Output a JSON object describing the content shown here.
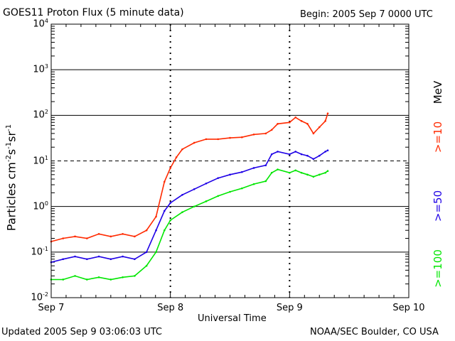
{
  "header": {
    "title": "GOES11 Proton Flux (5 minute data)",
    "begin": "Begin: 2005 Sep 7 0000 UTC"
  },
  "footer": {
    "updated": "Updated 2005 Sep  9 03:06:03 UTC",
    "credit": "NOAA/SEC Boulder, CO USA"
  },
  "colors": {
    "ge10": "#ff2a00",
    "ge50": "#1e00e6",
    "ge100": "#00e600"
  },
  "chart_data": {
    "type": "line",
    "title": "GOES11 Proton Flux (5 minute data)",
    "xlabel": "Universal Time",
    "ylabel": "Particles cm-2s-1sr-1",
    "yscale": "log",
    "ylim": [
      0.01,
      10000
    ],
    "xlim_days": [
      0,
      3
    ],
    "xtick_labels": [
      "Sep 7",
      "Sep 8",
      "Sep 9",
      "Sep 10"
    ],
    "ytick_labels": [
      {
        "base": "10",
        "exp": "-2"
      },
      {
        "base": "10",
        "exp": "-1"
      },
      {
        "base": "10",
        "exp": "0"
      },
      {
        "base": "10",
        "exp": "1"
      },
      {
        "base": "10",
        "exp": "2"
      },
      {
        "base": "10",
        "exp": "3"
      },
      {
        "base": "10",
        "exp": "4"
      }
    ],
    "ylabel_parts": {
      "main": "Particles cm",
      "e1": "-2",
      "s": "s",
      "e2": "-1",
      "sr": "sr",
      "e3": "-1"
    },
    "unit_label": "MeV",
    "reference_line": {
      "value": 10,
      "style": "dashed"
    },
    "series": [
      {
        "name": ">=10",
        "color": "#ff2a00",
        "points": [
          [
            0.0,
            0.17
          ],
          [
            0.1,
            0.2
          ],
          [
            0.2,
            0.22
          ],
          [
            0.3,
            0.2
          ],
          [
            0.4,
            0.25
          ],
          [
            0.5,
            0.22
          ],
          [
            0.6,
            0.25
          ],
          [
            0.7,
            0.22
          ],
          [
            0.8,
            0.3
          ],
          [
            0.88,
            0.6
          ],
          [
            0.95,
            3.5
          ],
          [
            1.0,
            7
          ],
          [
            1.05,
            12
          ],
          [
            1.1,
            18
          ],
          [
            1.2,
            25
          ],
          [
            1.3,
            30
          ],
          [
            1.4,
            30
          ],
          [
            1.5,
            32
          ],
          [
            1.6,
            33
          ],
          [
            1.7,
            38
          ],
          [
            1.8,
            40
          ],
          [
            1.85,
            48
          ],
          [
            1.9,
            65
          ],
          [
            2.0,
            70
          ],
          [
            2.05,
            90
          ],
          [
            2.1,
            75
          ],
          [
            2.15,
            65
          ],
          [
            2.2,
            40
          ],
          [
            2.25,
            55
          ],
          [
            2.3,
            75
          ],
          [
            2.32,
            110
          ]
        ]
      },
      {
        "name": ">=50",
        "color": "#1e00e6",
        "points": [
          [
            0.0,
            0.06
          ],
          [
            0.1,
            0.07
          ],
          [
            0.2,
            0.08
          ],
          [
            0.3,
            0.07
          ],
          [
            0.4,
            0.08
          ],
          [
            0.5,
            0.07
          ],
          [
            0.6,
            0.08
          ],
          [
            0.7,
            0.07
          ],
          [
            0.8,
            0.1
          ],
          [
            0.88,
            0.3
          ],
          [
            0.95,
            0.8
          ],
          [
            1.0,
            1.2
          ],
          [
            1.1,
            1.8
          ],
          [
            1.2,
            2.4
          ],
          [
            1.3,
            3.2
          ],
          [
            1.4,
            4.2
          ],
          [
            1.5,
            5
          ],
          [
            1.6,
            5.7
          ],
          [
            1.7,
            7
          ],
          [
            1.8,
            8
          ],
          [
            1.85,
            14
          ],
          [
            1.9,
            16
          ],
          [
            2.0,
            14
          ],
          [
            2.05,
            16
          ],
          [
            2.1,
            14
          ],
          [
            2.15,
            13
          ],
          [
            2.2,
            11
          ],
          [
            2.25,
            13
          ],
          [
            2.3,
            16
          ],
          [
            2.32,
            17
          ]
        ]
      },
      {
        "name": ">=100",
        "color": "#00e600",
        "points": [
          [
            0.0,
            0.025
          ],
          [
            0.1,
            0.025
          ],
          [
            0.2,
            0.03
          ],
          [
            0.3,
            0.025
          ],
          [
            0.4,
            0.028
          ],
          [
            0.5,
            0.025
          ],
          [
            0.6,
            0.028
          ],
          [
            0.7,
            0.03
          ],
          [
            0.8,
            0.05
          ],
          [
            0.88,
            0.1
          ],
          [
            0.95,
            0.3
          ],
          [
            1.0,
            0.5
          ],
          [
            1.1,
            0.75
          ],
          [
            1.2,
            1.0
          ],
          [
            1.3,
            1.3
          ],
          [
            1.4,
            1.7
          ],
          [
            1.5,
            2.1
          ],
          [
            1.6,
            2.5
          ],
          [
            1.7,
            3.1
          ],
          [
            1.8,
            3.6
          ],
          [
            1.85,
            5.5
          ],
          [
            1.9,
            6.5
          ],
          [
            2.0,
            5.5
          ],
          [
            2.05,
            6.2
          ],
          [
            2.1,
            5.5
          ],
          [
            2.15,
            5
          ],
          [
            2.2,
            4.5
          ],
          [
            2.25,
            5
          ],
          [
            2.3,
            5.5
          ],
          [
            2.32,
            6
          ]
        ]
      }
    ]
  }
}
